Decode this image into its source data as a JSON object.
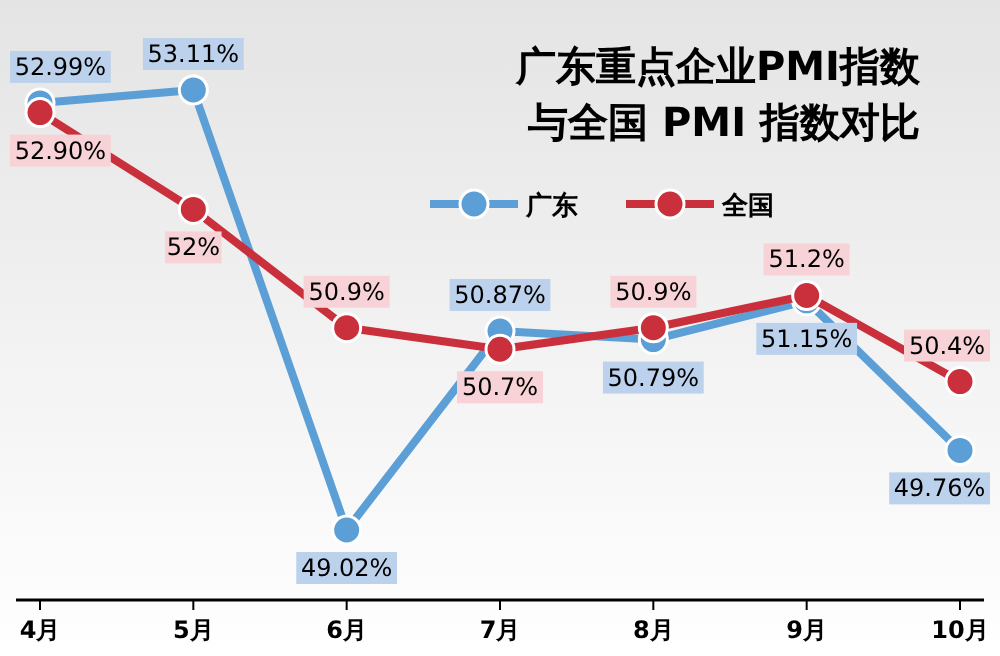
{
  "chart_data": {
    "type": "line",
    "title": "广东重点企业PMI指数",
    "subtitle": "与全国 PMI 指数对比",
    "categories": [
      "4月",
      "5月",
      "6月",
      "7月",
      "8月",
      "9月",
      "10月"
    ],
    "legend": "top",
    "marker": "circle",
    "series": [
      {
        "name": "广东",
        "color": "#5b9fd6",
        "values": [
          52.99,
          53.11,
          49.02,
          50.87,
          50.79,
          51.15,
          49.76
        ],
        "value_labels": [
          "52.99%",
          "53.11%",
          "49.02%",
          "50.87%",
          "50.79%",
          "51.15%",
          "49.76%"
        ]
      },
      {
        "name": "全国",
        "color": "#c9303c",
        "values": [
          52.9,
          52,
          50.9,
          50.7,
          50.9,
          51.2,
          50.4
        ],
        "value_labels": [
          "52.90%",
          "52%",
          "50.9%",
          "50.7%",
          "50.9%",
          "51.2%",
          "50.4%"
        ]
      }
    ]
  }
}
